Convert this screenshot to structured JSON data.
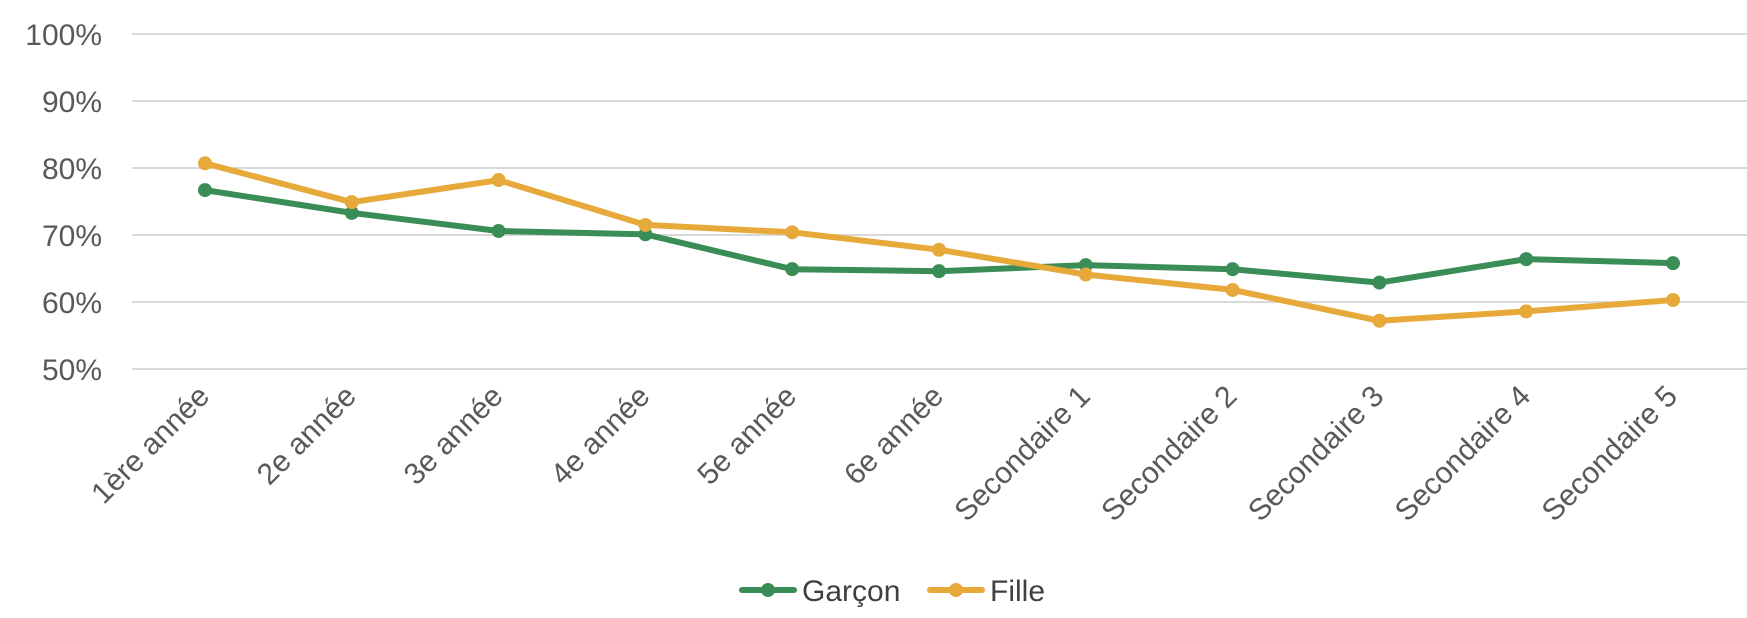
{
  "chart_data": {
    "type": "line",
    "categories": [
      "1ère année",
      "2e année",
      "3e année",
      "4e année",
      "5e année",
      "6e année",
      "Secondaire 1",
      "Secondaire 2",
      "Secondaire 3",
      "Secondaire 4",
      "Secondaire 5"
    ],
    "series": [
      {
        "name": "Garçon",
        "color": "#3a8d57",
        "values": [
          76.7,
          73.3,
          70.6,
          70.1,
          64.9,
          64.6,
          65.5,
          64.9,
          62.9,
          66.4,
          65.8
        ]
      },
      {
        "name": "Fille",
        "color": "#e6a93a",
        "values": [
          80.7,
          74.9,
          78.2,
          71.5,
          70.4,
          67.8,
          64.1,
          61.8,
          57.2,
          58.6,
          60.3
        ]
      }
    ],
    "ylim": [
      50,
      100
    ],
    "yticks": [
      50,
      60,
      70,
      80,
      90,
      100
    ],
    "ytick_labels": [
      "50%",
      "60%",
      "70%",
      "80%",
      "90%",
      "100%"
    ],
    "grid": true,
    "legend_position": "bottom"
  }
}
